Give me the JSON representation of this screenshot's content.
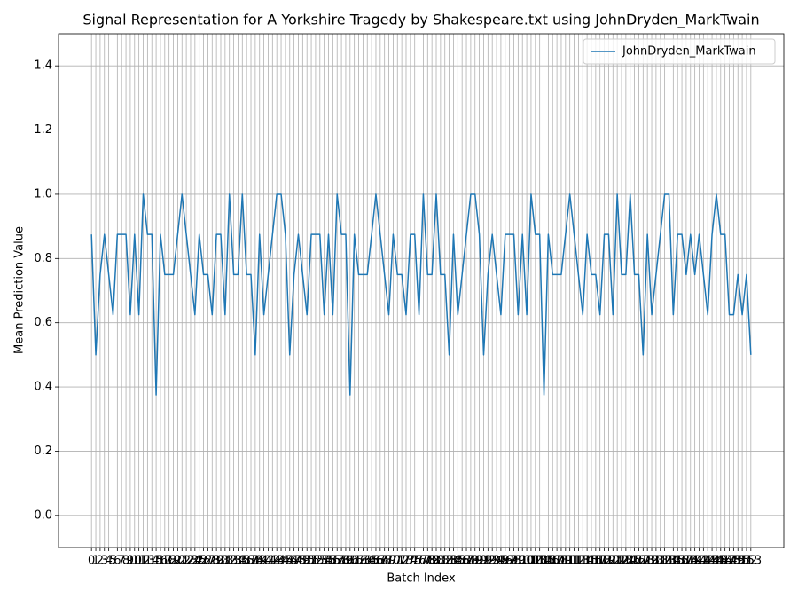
{
  "chart_data": {
    "type": "line",
    "title": "Signal Representation for A Yorkshire Tragedy by Shakespeare.txt using JohnDryden_MarkTwain",
    "xlabel": "Batch Index",
    "ylabel": "Mean Prediction Value",
    "x": [
      0,
      1,
      2,
      3,
      4,
      5,
      6,
      7,
      8,
      9,
      10,
      11,
      12,
      13,
      14,
      15,
      16,
      17,
      18,
      19,
      20,
      21,
      22,
      23,
      24,
      25,
      26,
      27,
      28,
      29,
      30,
      31,
      32,
      33,
      34,
      35,
      36,
      37,
      38,
      39,
      40,
      41,
      42,
      43,
      44,
      45,
      46,
      47,
      48,
      49,
      50,
      51,
      52,
      53,
      54,
      55,
      56,
      57,
      58,
      59,
      60,
      61,
      62,
      63,
      64,
      65,
      66,
      67,
      68,
      69,
      70,
      71,
      72,
      73,
      74,
      75,
      76,
      77,
      78,
      79,
      80,
      81,
      82,
      83,
      84,
      85,
      86,
      87,
      88,
      89,
      90,
      91,
      92,
      93,
      94,
      95,
      96,
      97,
      98,
      99,
      100,
      101,
      102,
      103,
      104,
      105,
      106,
      107,
      108,
      109,
      110,
      111,
      112,
      113,
      114,
      115,
      116,
      117,
      118,
      119,
      120,
      121,
      122,
      123,
      124,
      125,
      126,
      127,
      128,
      129,
      130,
      131,
      132,
      133,
      134,
      135,
      136,
      137,
      138,
      139,
      140,
      141,
      142,
      143,
      144,
      145,
      146,
      147,
      148,
      149,
      150,
      151,
      152,
      153
    ],
    "series": [
      {
        "name": "JohnDryden_MarkTwain",
        "color": "#1f77b4",
        "values": [
          0.875,
          0.5,
          0.75,
          0.875,
          0.75,
          0.625,
          0.875,
          0.875,
          0.875,
          0.625,
          0.875,
          0.625,
          1,
          0.875,
          0.875,
          0.375,
          0.875,
          0.75,
          0.75,
          0.75,
          0.875,
          1,
          0.875,
          0.75,
          0.625,
          0.875,
          0.75,
          0.75,
          0.625,
          0.875,
          0.875,
          0.625,
          1,
          0.75,
          0.75,
          1,
          0.75,
          0.75,
          0.5,
          0.875,
          0.625,
          0.75,
          0.875,
          1,
          1,
          0.875,
          0.5,
          0.75,
          0.875,
          0.75,
          0.625,
          0.875,
          0.875,
          0.875,
          0.625,
          0.875,
          0.625,
          1,
          0.875,
          0.875,
          0.375,
          0.875,
          0.75,
          0.75,
          0.75,
          0.875,
          1,
          0.875,
          0.75,
          0.625,
          0.875,
          0.75,
          0.75,
          0.625,
          0.875,
          0.875,
          0.625,
          1,
          0.75,
          0.75,
          1,
          0.75,
          0.75,
          0.5,
          0.875,
          0.625,
          0.75,
          0.875,
          1,
          1,
          0.875,
          0.5,
          0.75,
          0.875,
          0.75,
          0.625,
          0.875,
          0.875,
          0.875,
          0.625,
          0.875,
          0.625,
          1,
          0.875,
          0.875,
          0.375,
          0.875,
          0.75,
          0.75,
          0.75,
          0.875,
          1,
          0.875,
          0.75,
          0.625,
          0.875,
          0.75,
          0.75,
          0.625,
          0.875,
          0.875,
          0.625,
          1,
          0.75,
          0.75,
          1,
          0.75,
          0.75,
          0.5,
          0.875,
          0.625,
          0.75,
          0.875,
          1,
          1,
          0.625,
          0.875,
          0.875,
          0.75,
          0.875,
          0.75,
          0.875,
          0.75,
          0.625,
          0.875,
          1,
          0.875,
          0.875,
          0.625,
          0.625,
          0.75,
          0.625,
          0.75,
          0.5
        ]
      }
    ],
    "xlim": [
      -7.65,
      160.65
    ],
    "xticks": [
      0,
      1,
      2,
      3,
      4,
      5,
      6,
      7,
      8,
      9,
      10,
      11,
      12,
      13,
      14,
      15,
      16,
      17,
      18,
      19,
      20,
      21,
      22,
      23,
      24,
      25,
      26,
      27,
      28,
      29,
      30,
      31,
      32,
      33,
      34,
      35,
      36,
      37,
      38,
      39,
      40,
      41,
      42,
      43,
      44,
      45,
      46,
      47,
      48,
      49,
      50,
      51,
      52,
      53,
      54,
      55,
      56,
      57,
      58,
      59,
      60,
      61,
      62,
      63,
      64,
      65,
      66,
      67,
      68,
      69,
      70,
      71,
      72,
      73,
      74,
      75,
      76,
      77,
      78,
      79,
      80,
      81,
      82,
      83,
      84,
      85,
      86,
      87,
      88,
      89,
      90,
      91,
      92,
      93,
      94,
      95,
      96,
      97,
      98,
      99,
      100,
      101,
      102,
      103,
      104,
      105,
      106,
      107,
      108,
      109,
      110,
      111,
      112,
      113,
      114,
      115,
      116,
      117,
      118,
      119,
      120,
      121,
      122,
      123,
      124,
      125,
      126,
      127,
      128,
      129,
      130,
      131,
      132,
      133,
      134,
      135,
      136,
      137,
      138,
      139,
      140,
      141,
      142,
      143,
      144,
      145,
      146,
      147,
      148,
      149,
      150,
      151,
      152,
      153
    ],
    "ylim": [
      -0.1,
      1.5
    ],
    "yticks": [
      {
        "value": 0,
        "label": "0.0"
      },
      {
        "value": 0.2,
        "label": "0.2"
      },
      {
        "value": 0.4,
        "label": "0.4"
      },
      {
        "value": 0.6,
        "label": "0.6"
      },
      {
        "value": 0.8,
        "label": "0.8"
      },
      {
        "value": 1,
        "label": "1.0"
      },
      {
        "value": 1.2,
        "label": "1.2"
      },
      {
        "value": 1.4,
        "label": "1.4"
      }
    ],
    "grid": true,
    "legend": "upper right"
  }
}
